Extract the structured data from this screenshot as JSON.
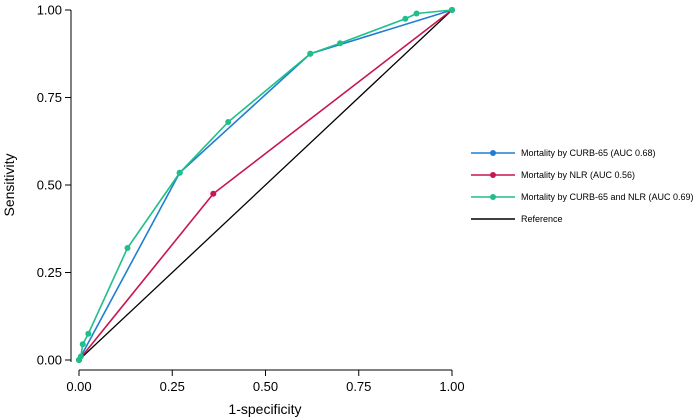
{
  "chart_data": {
    "type": "line",
    "title": "",
    "xlabel": "1-specificity",
    "ylabel": "Sensitivity",
    "xlim": [
      0,
      1
    ],
    "ylim": [
      0,
      1
    ],
    "xticks": [
      0,
      0.25,
      0.5,
      0.75,
      1
    ],
    "xtick_labels": [
      "0.00",
      "0.25",
      "0.50",
      "0.75",
      "1.00"
    ],
    "yticks": [
      0,
      0.25,
      0.5,
      0.75,
      1
    ],
    "ytick_labels": [
      "0.00",
      "0.25",
      "0.50",
      "0.75",
      "1.00"
    ],
    "grid": false,
    "legend_position": "right",
    "series": [
      {
        "name": "Mortality by CURB-65 (AUC 0.68)",
        "color": "#1f7fd1",
        "markers": true,
        "x": [
          0,
          0.27,
          0.62,
          1
        ],
        "y": [
          0,
          0.535,
          0.875,
          1
        ]
      },
      {
        "name": "Mortality by NLR (AUC 0.56)",
        "color": "#c8174e",
        "markers": true,
        "x": [
          0,
          0.36,
          1
        ],
        "y": [
          0,
          0.475,
          1
        ]
      },
      {
        "name": "Mortality by CURB-65 and NLR (AUC 0.69)",
        "color": "#1fbf8a",
        "markers": true,
        "x": [
          0,
          0.005,
          0.01,
          0.025,
          0.13,
          0.27,
          0.4,
          0.62,
          0.7,
          0.875,
          0.905,
          1
        ],
        "y": [
          0,
          0.01,
          0.045,
          0.075,
          0.32,
          0.535,
          0.68,
          0.875,
          0.905,
          0.975,
          0.99,
          1
        ]
      },
      {
        "name": "Reference",
        "color": "#000000",
        "markers": false,
        "x": [
          0,
          1
        ],
        "y": [
          0,
          1
        ]
      }
    ]
  }
}
